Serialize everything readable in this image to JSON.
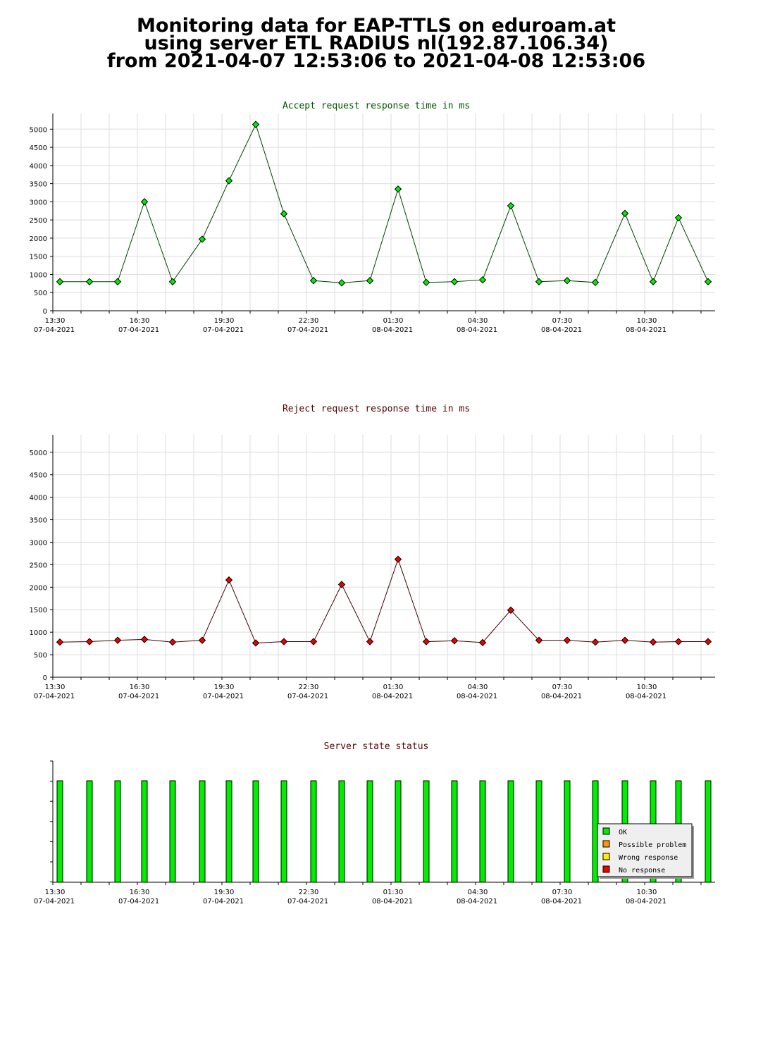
{
  "header": {
    "line1": "Monitoring data for EAP-TTLS on eduroam.at",
    "line2": "using server ETL RADIUS nl(192.87.106.34)",
    "line3": "from 2021-04-07 12:53:06 to 2021-04-08 12:53:06"
  },
  "colors": {
    "accept_marker": "#00ee00",
    "accept_line": "#004400",
    "reject_marker": "#ee0000",
    "reject_line": "#440000",
    "status_ok": "#00ee00",
    "grid": "#dddddd"
  },
  "chart_data": [
    {
      "type": "line",
      "title": "Accept request response time in ms",
      "title_color": "#005500",
      "x_tick_labels": [
        {
          "time": "13:30",
          "date": "07-04-2021"
        },
        {
          "time": "16:30",
          "date": "07-04-2021"
        },
        {
          "time": "19:30",
          "date": "07-04-2021"
        },
        {
          "time": "22:30",
          "date": "07-04-2021"
        },
        {
          "time": "01:30",
          "date": "08-04-2021"
        },
        {
          "time": "04:30",
          "date": "08-04-2021"
        },
        {
          "time": "07:30",
          "date": "08-04-2021"
        },
        {
          "time": "10:30",
          "date": "08-04-2021"
        }
      ],
      "xlim": [
        "2021-04-07 13:30",
        "2021-04-08 13:30"
      ],
      "yticks": [
        0,
        500,
        1000,
        1500,
        2000,
        2500,
        3000,
        3500,
        4000,
        4500,
        5000
      ],
      "ylim": [
        0,
        5200
      ],
      "grid": true,
      "series": [
        {
          "x": [
            "2021-04-07 13:45",
            "2021-04-07 14:48",
            "2021-04-07 15:48",
            "2021-04-07 16:45",
            "2021-04-07 17:45",
            "2021-04-07 18:48",
            "2021-04-07 19:45",
            "2021-04-07 20:42",
            "2021-04-07 21:42",
            "2021-04-07 22:45",
            "2021-04-07 23:45",
            "2021-04-08 00:45",
            "2021-04-08 01:45",
            "2021-04-08 02:45",
            "2021-04-08 03:45",
            "2021-04-08 04:45",
            "2021-04-08 05:45",
            "2021-04-08 06:45",
            "2021-04-08 07:45",
            "2021-04-08 08:45",
            "2021-04-08 09:48",
            "2021-04-08 10:48",
            "2021-04-08 11:42",
            "2021-04-08 12:45"
          ],
          "y": [
            800,
            800,
            800,
            3000,
            800,
            1970,
            3580,
            5130,
            2670,
            830,
            770,
            830,
            3350,
            780,
            800,
            850,
            2890,
            800,
            830,
            780,
            2680,
            800,
            2560,
            800
          ]
        }
      ]
    },
    {
      "type": "line",
      "title": "Reject request response time in ms",
      "title_color": "#550000",
      "x_tick_labels": [
        {
          "time": "13:30",
          "date": "07-04-2021"
        },
        {
          "time": "16:30",
          "date": "07-04-2021"
        },
        {
          "time": "19:30",
          "date": "07-04-2021"
        },
        {
          "time": "22:30",
          "date": "07-04-2021"
        },
        {
          "time": "01:30",
          "date": "08-04-2021"
        },
        {
          "time": "04:30",
          "date": "08-04-2021"
        },
        {
          "time": "07:30",
          "date": "08-04-2021"
        },
        {
          "time": "10:30",
          "date": "08-04-2021"
        }
      ],
      "xlim": [
        "2021-04-07 13:30",
        "2021-04-08 13:30"
      ],
      "yticks": [
        0,
        500,
        1000,
        1500,
        2000,
        2500,
        3000,
        3500,
        4000,
        4500,
        5000
      ],
      "ylim": [
        0,
        5200
      ],
      "grid": true,
      "series": [
        {
          "x": [
            "2021-04-07 13:45",
            "2021-04-07 14:48",
            "2021-04-07 15:48",
            "2021-04-07 16:45",
            "2021-04-07 17:45",
            "2021-04-07 18:48",
            "2021-04-07 19:45",
            "2021-04-07 20:42",
            "2021-04-07 21:42",
            "2021-04-07 22:45",
            "2021-04-07 23:45",
            "2021-04-08 00:45",
            "2021-04-08 01:45",
            "2021-04-08 02:45",
            "2021-04-08 03:45",
            "2021-04-08 04:45",
            "2021-04-08 05:45",
            "2021-04-08 06:45",
            "2021-04-08 07:45",
            "2021-04-08 08:45",
            "2021-04-08 09:48",
            "2021-04-08 10:48",
            "2021-04-08 11:42",
            "2021-04-08 12:45"
          ],
          "y": [
            780,
            790,
            820,
            840,
            780,
            820,
            2160,
            760,
            790,
            790,
            2060,
            790,
            2620,
            790,
            810,
            770,
            1490,
            820,
            820,
            780,
            820,
            780,
            790,
            790
          ]
        }
      ]
    },
    {
      "type": "bar",
      "title": "Server state status",
      "title_color": "#550000",
      "x_tick_labels": [
        {
          "time": "13:30",
          "date": "07-04-2021"
        },
        {
          "time": "16:30",
          "date": "07-04-2021"
        },
        {
          "time": "19:30",
          "date": "07-04-2021"
        },
        {
          "time": "22:30",
          "date": "07-04-2021"
        },
        {
          "time": "01:30",
          "date": "08-04-2021"
        },
        {
          "time": "04:30",
          "date": "08-04-2021"
        },
        {
          "time": "07:30",
          "date": "08-04-2021"
        },
        {
          "time": "10:30",
          "date": "08-04-2021"
        }
      ],
      "xlim": [
        "2021-04-07 13:30",
        "2021-04-08 13:30"
      ],
      "legend_position": "bottom-right",
      "legend": [
        {
          "label": "OK",
          "color": "#00ee00"
        },
        {
          "label": "Possible problem",
          "color": "#ff9900"
        },
        {
          "label": "Wrong response",
          "color": "#ffee00"
        },
        {
          "label": "No response",
          "color": "#ee0000"
        }
      ],
      "status_x": [
        "2021-04-07 13:45",
        "2021-04-07 14:48",
        "2021-04-07 15:48",
        "2021-04-07 16:45",
        "2021-04-07 17:45",
        "2021-04-07 18:48",
        "2021-04-07 19:45",
        "2021-04-07 20:42",
        "2021-04-07 21:42",
        "2021-04-07 22:45",
        "2021-04-07 23:45",
        "2021-04-08 00:45",
        "2021-04-08 01:45",
        "2021-04-08 02:45",
        "2021-04-08 03:45",
        "2021-04-08 04:45",
        "2021-04-08 05:45",
        "2021-04-08 06:45",
        "2021-04-08 07:45",
        "2021-04-08 08:45",
        "2021-04-08 09:48",
        "2021-04-08 10:48",
        "2021-04-08 11:42",
        "2021-04-08 12:45"
      ],
      "status": [
        "OK",
        "OK",
        "OK",
        "OK",
        "OK",
        "OK",
        "OK",
        "OK",
        "OK",
        "OK",
        "OK",
        "OK",
        "OK",
        "OK",
        "OK",
        "OK",
        "OK",
        "OK",
        "OK",
        "OK",
        "OK",
        "OK",
        "OK",
        "OK"
      ]
    }
  ]
}
